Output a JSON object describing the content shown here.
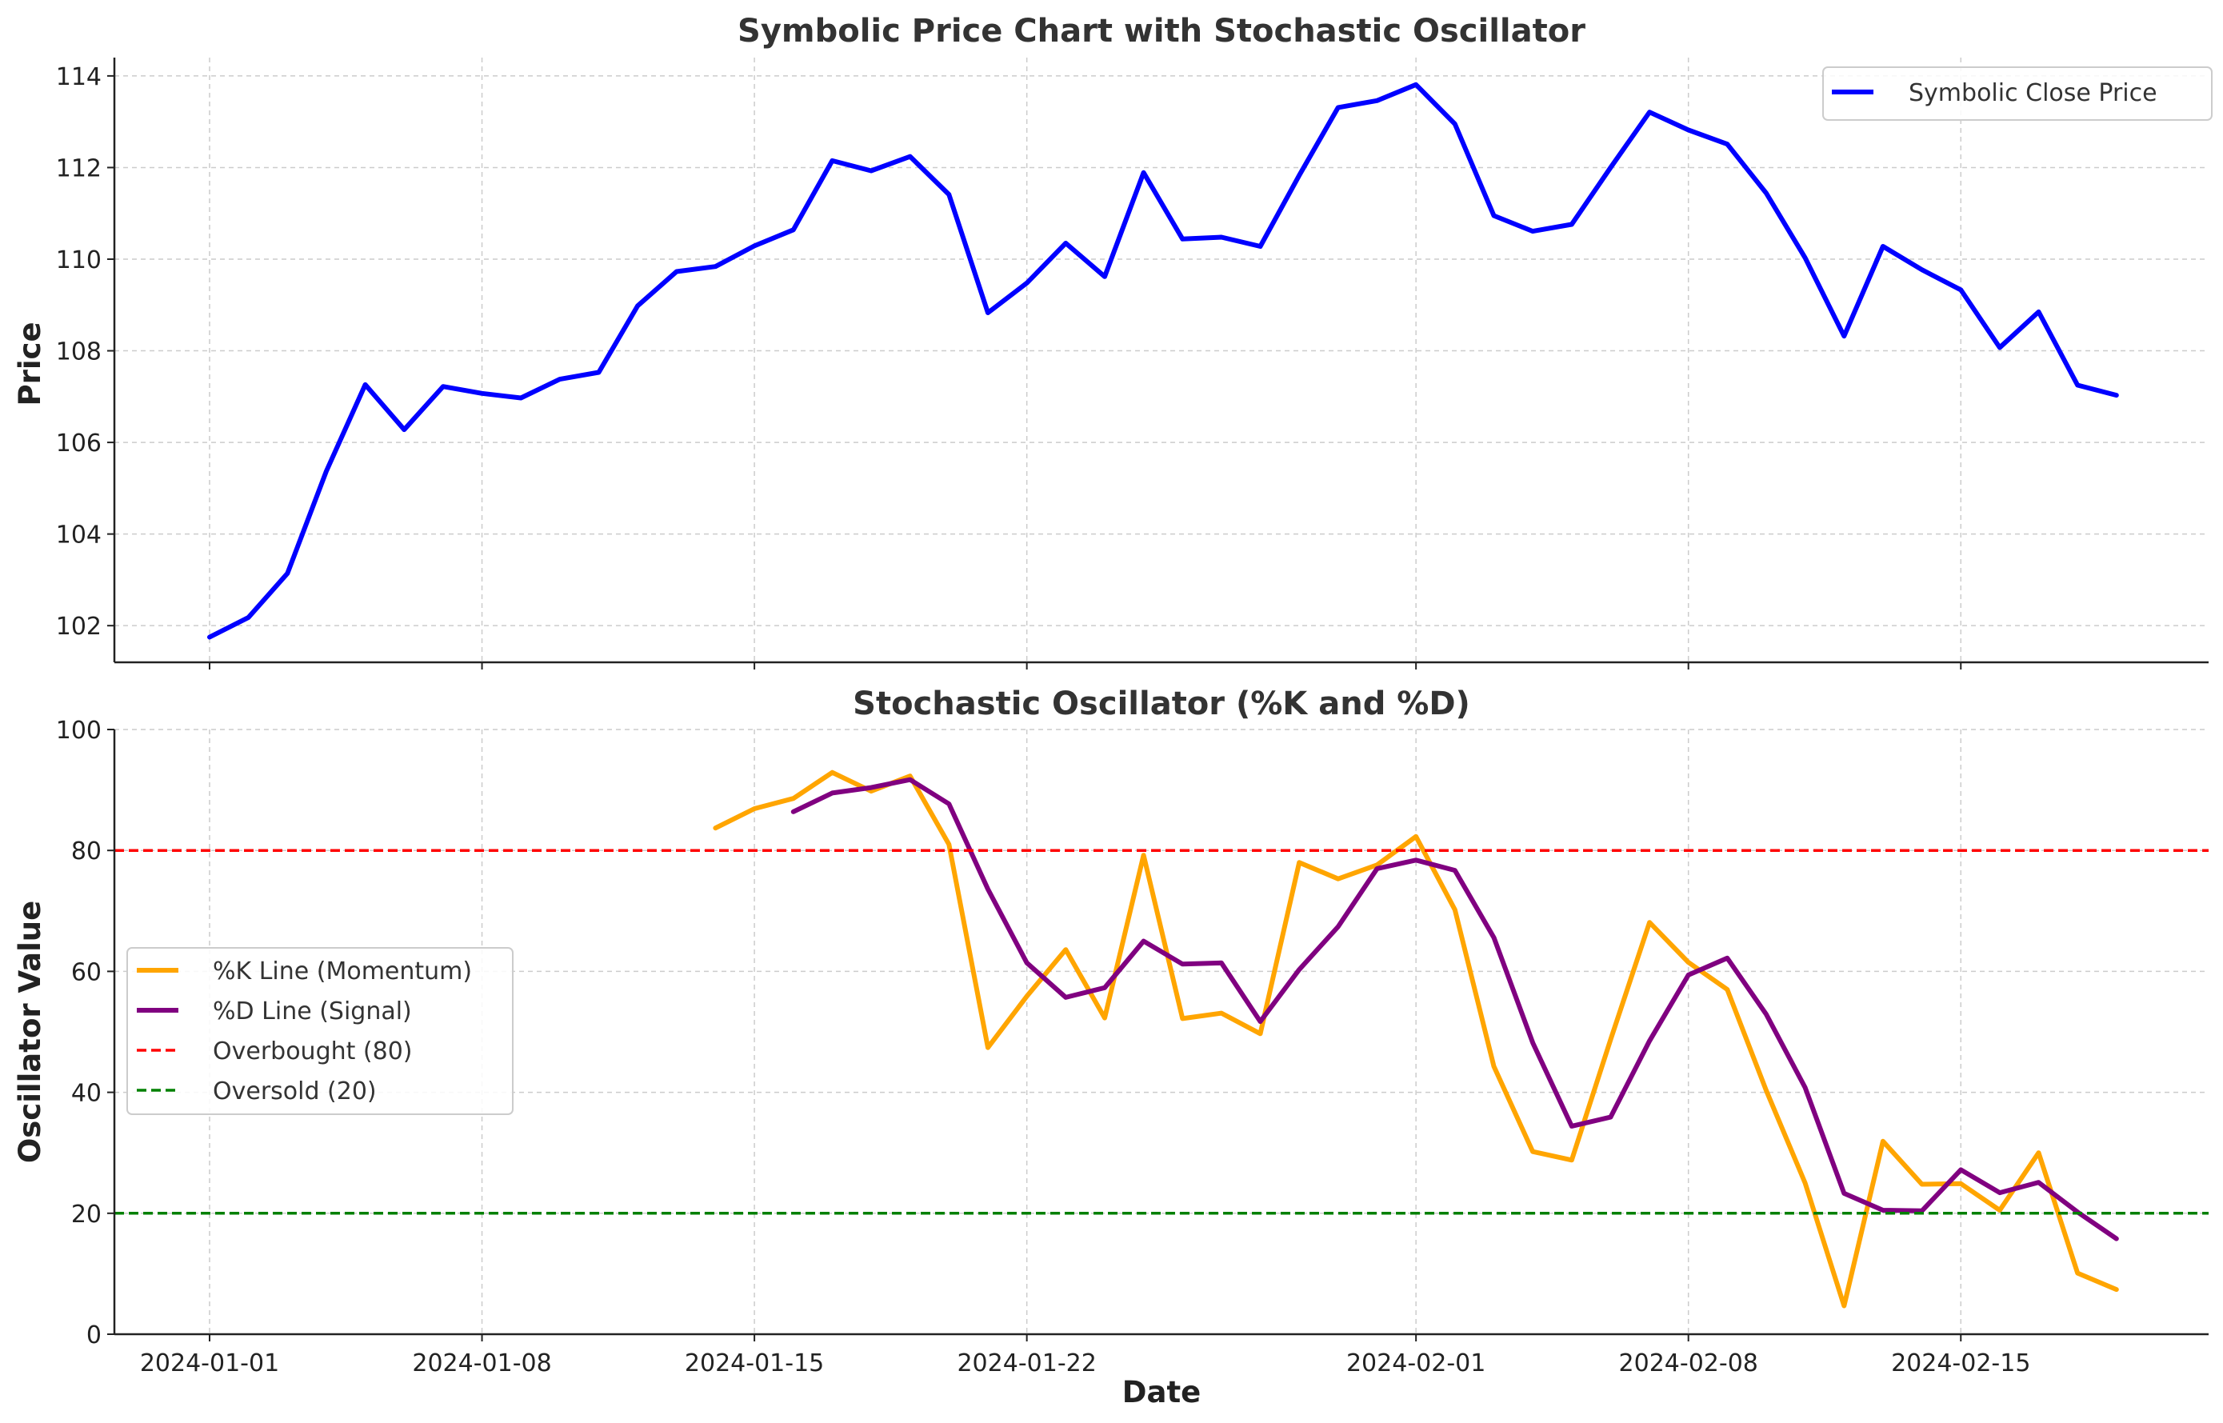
{
  "chart_data": [
    {
      "type": "line",
      "title": "Symbolic Price Chart with Stochastic Oscillator",
      "xlabel": "",
      "ylabel": "Price",
      "ylim": [
        101.2,
        114.4
      ],
      "yticks": [
        "102",
        "104",
        "106",
        "108",
        "110",
        "112",
        "114"
      ],
      "grid": true,
      "legend_position": "upper right",
      "x": [
        "2024-01-01",
        "2024-01-02",
        "2024-01-03",
        "2024-01-04",
        "2024-01-05",
        "2024-01-06",
        "2024-01-07",
        "2024-01-08",
        "2024-01-09",
        "2024-01-10",
        "2024-01-11",
        "2024-01-12",
        "2024-01-13",
        "2024-01-14",
        "2024-01-15",
        "2024-01-16",
        "2024-01-17",
        "2024-01-18",
        "2024-01-19",
        "2024-01-20",
        "2024-01-21",
        "2024-01-22",
        "2024-01-23",
        "2024-01-24",
        "2024-01-25",
        "2024-01-26",
        "2024-01-27",
        "2024-01-28",
        "2024-01-29",
        "2024-01-30",
        "2024-01-31",
        "2024-02-01",
        "2024-02-02",
        "2024-02-03",
        "2024-02-04",
        "2024-02-05",
        "2024-02-06",
        "2024-02-07",
        "2024-02-08",
        "2024-02-09",
        "2024-02-10",
        "2024-02-11",
        "2024-02-12",
        "2024-02-13",
        "2024-02-14",
        "2024-02-15",
        "2024-02-16",
        "2024-02-17",
        "2024-02-18",
        "2024-02-19"
      ],
      "series": [
        {
          "name": "Symbolic Close Price",
          "color": "#0000ff",
          "values": [
            101.75,
            102.18,
            103.14,
            105.37,
            107.26,
            106.28,
            107.22,
            107.07,
            106.97,
            107.38,
            107.53,
            108.98,
            109.73,
            109.84,
            110.29,
            110.64,
            112.15,
            111.93,
            112.24,
            111.41,
            108.83,
            109.48,
            110.35,
            109.62,
            111.89,
            110.44,
            110.48,
            110.28,
            111.83,
            113.31,
            113.46,
            113.81,
            112.95,
            110.95,
            110.61,
            110.76,
            112.0,
            113.21,
            112.82,
            112.51,
            111.44,
            110.03,
            108.32,
            110.28,
            109.77,
            109.33,
            108.07,
            108.85,
            107.25,
            107.03
          ]
        }
      ]
    },
    {
      "type": "line",
      "title": "Stochastic Oscillator (%K and %D)",
      "xlabel": "Date",
      "ylabel": "Oscillator Value",
      "ylim": [
        0,
        100
      ],
      "yticks": [
        "0",
        "20",
        "40",
        "60",
        "80",
        "100"
      ],
      "xticks": [
        "2024-01-01",
        "2024-01-08",
        "2024-01-15",
        "2024-01-22",
        "2024-02-01",
        "2024-02-08",
        "2024-02-15"
      ],
      "grid": true,
      "legend_position": "center left",
      "series": [
        {
          "name": "%K Line (Momentum)",
          "color": "#ffa500",
          "start_date": "2024-01-14",
          "values": [
            83.7,
            86.9,
            88.6,
            92.9,
            89.8,
            92.3,
            81.0,
            47.4,
            55.9,
            63.6,
            52.3,
            79.2,
            52.2,
            53.1,
            49.7,
            78.0,
            75.3,
            77.6,
            82.3,
            70.2,
            44.3,
            30.2,
            28.8,
            48.7,
            68.1,
            61.5,
            57.0,
            40.3,
            25.0,
            4.7,
            31.9,
            24.8,
            24.9,
            20.5,
            30.0,
            10.1,
            7.4
          ]
        },
        {
          "name": "%D Line (Signal)",
          "color": "#800080",
          "start_date": "2024-01-16",
          "values": [
            86.4,
            89.5,
            90.4,
            91.7,
            87.7,
            73.6,
            61.4,
            55.7,
            57.3,
            65.0,
            61.2,
            61.4,
            51.7,
            60.3,
            67.4,
            77.0,
            78.4,
            76.7,
            65.6,
            48.2,
            34.4,
            35.9,
            48.5,
            59.4,
            62.2,
            52.9,
            40.8,
            23.3,
            20.5,
            20.4,
            27.2,
            23.4,
            25.1,
            20.2,
            15.8
          ]
        },
        {
          "name": "Overbought (80)",
          "color": "#ff0000",
          "dashed": true,
          "value": 80
        },
        {
          "name": "Oversold (20)",
          "color": "#008000",
          "dashed": true,
          "value": 20
        }
      ]
    }
  ]
}
